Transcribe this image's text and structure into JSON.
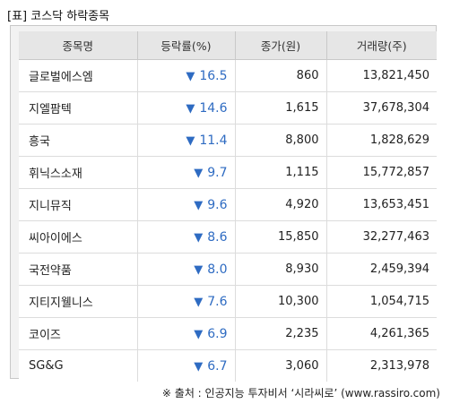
{
  "title": "[표] 코스닥 하락종목",
  "headers": [
    "종목명",
    "등락률(%)",
    "종가(원)",
    "거래량(주)"
  ],
  "down_symbol": "▼",
  "rows": [
    {
      "name": "글로벌에스엠",
      "rate": "16.5",
      "price": "860",
      "volume": "13,821,450"
    },
    {
      "name": "지엘팜텍",
      "rate": "14.6",
      "price": "1,615",
      "volume": "37,678,304"
    },
    {
      "name": "흥국",
      "rate": "11.4",
      "price": "8,800",
      "volume": "1,828,629"
    },
    {
      "name": "휘닉스소재",
      "rate": "9.7",
      "price": "1,115",
      "volume": "15,772,857"
    },
    {
      "name": "지니뮤직",
      "rate": "9.6",
      "price": "4,920",
      "volume": "13,653,451"
    },
    {
      "name": "씨아이에스",
      "rate": "8.6",
      "price": "15,850",
      "volume": "32,277,463"
    },
    {
      "name": "국전약품",
      "rate": "8.0",
      "price": "8,930",
      "volume": "2,459,394"
    },
    {
      "name": "지티지웰니스",
      "rate": "7.6",
      "price": "10,300",
      "volume": "1,054,715"
    },
    {
      "name": "코이즈",
      "rate": "6.9",
      "price": "2,235",
      "volume": "4,261,365"
    },
    {
      "name": "SG&G",
      "rate": "6.7",
      "price": "3,060",
      "volume": "2,313,978"
    }
  ],
  "source": "※ 출처 : 인공지능 투자비서 ‘시라씨로’ (www.rassiro.com)",
  "colors": {
    "down": "#2e6bc2",
    "header_bg": "#e6e6e6",
    "frame_bg": "#f2f2f2"
  }
}
